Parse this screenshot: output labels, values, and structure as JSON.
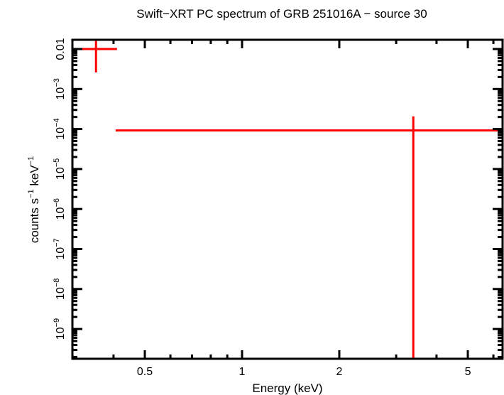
{
  "chart_data": {
    "type": "scatter",
    "title": "Swift−XRT PC spectrum of GRB 251016A − source 30",
    "xlabel": "Energy (keV)",
    "ylabel": "counts s⁻¹ keV⁻¹",
    "xscale": "log",
    "yscale": "log",
    "xlim": [
      0.3,
      6.4
    ],
    "ylim": [
      1.8e-10,
      0.0175
    ],
    "x_ticks": [
      {
        "value": 0.5,
        "label": "0.5"
      },
      {
        "value": 1,
        "label": "1"
      },
      {
        "value": 2,
        "label": "2"
      },
      {
        "value": 5,
        "label": "5"
      }
    ],
    "y_ticks": [
      {
        "value": 0.01,
        "label": "0.01"
      },
      {
        "value": 0.001,
        "label": "10⁻³"
      },
      {
        "value": 0.0001,
        "label": "10⁻⁴"
      },
      {
        "value": 1e-05,
        "label": "10⁻⁵"
      },
      {
        "value": 1e-06,
        "label": "10⁻⁶"
      },
      {
        "value": 1e-07,
        "label": "10⁻⁷"
      },
      {
        "value": 1e-08,
        "label": "10⁻⁸"
      },
      {
        "value": 1e-09,
        "label": "10⁻⁹"
      }
    ],
    "grid": false,
    "series": [
      {
        "name": "source 30",
        "color": "#ff0000",
        "points": [
          {
            "x": 0.353,
            "xlo": 0.3,
            "xhi": 0.41,
            "y": 0.01,
            "ylo": 0.0026,
            "yhi": 0.0175
          },
          {
            "x": 3.39,
            "xlo": 0.406,
            "xhi": 6.4,
            "y": 9.2e-05,
            "ylo": 1.8e-10,
            "yhi": 0.000208
          }
        ]
      }
    ]
  },
  "y_tick_parts": [
    {
      "base": "0.01",
      "exp": ""
    },
    {
      "base": "10",
      "exp": "−3"
    },
    {
      "base": "10",
      "exp": "−4"
    },
    {
      "base": "10",
      "exp": "−5"
    },
    {
      "base": "10",
      "exp": "−6"
    },
    {
      "base": "10",
      "exp": "−7"
    },
    {
      "base": "10",
      "exp": "−8"
    },
    {
      "base": "10",
      "exp": "−9"
    }
  ],
  "ylabel_parts": {
    "a": "counts s",
    "b": "−1",
    "c": " keV",
    "d": "−1"
  }
}
